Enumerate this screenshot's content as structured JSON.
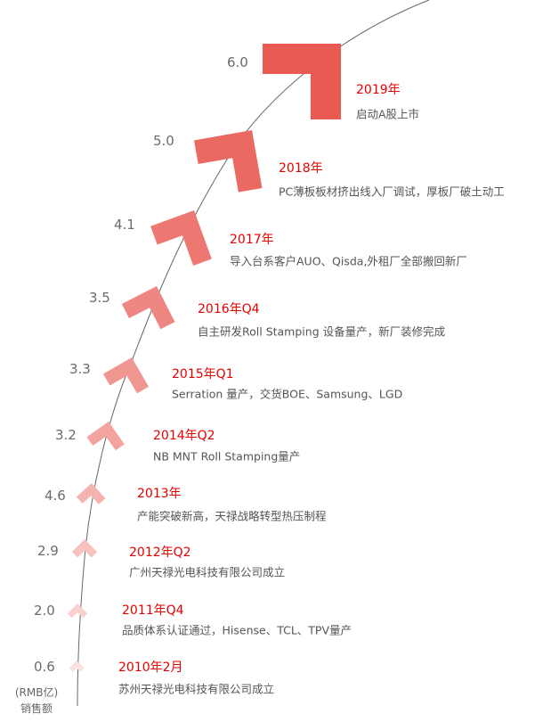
{
  "unit_label": "(RMB亿)",
  "axis_label": "销售额",
  "colors": {
    "title": "#e60000",
    "arrow_top": "#e85a52",
    "arrow_bottom": "#fbe0df",
    "line": "#666666"
  },
  "milestones": [
    {
      "value": "6.0",
      "title": "2019年",
      "desc": "启动A股上市"
    },
    {
      "value": "5.0",
      "title": "2018年",
      "desc": "PC薄板板材挤出线入厂调试，厚板厂破土动工"
    },
    {
      "value": "4.1",
      "title": "2017年",
      "desc": "导入台系客户AUO、Qisda,外租厂全部搬回新厂"
    },
    {
      "value": "3.5",
      "title": "2016年Q4",
      "desc": "自主研发Roll Stamping 设备量产，新厂装修完成"
    },
    {
      "value": "3.3",
      "title": "2015年Q1",
      "desc": "Serration 量产，交货BOE、Samsung、LGD"
    },
    {
      "value": "3.2",
      "title": "2014年Q2",
      "desc": "NB MNT Roll Stamping量产"
    },
    {
      "value": "4.6",
      "title": "2013年",
      "desc": "产能突破新高，天禄战略转型热压制程"
    },
    {
      "value": "2.9",
      "title": "2012年Q2",
      "desc": "广州天禄光电科技有限公司成立"
    },
    {
      "value": "2.0",
      "title": "2011年Q4",
      "desc": "品质体系认证通过，Hisense、TCL、TPV量产"
    },
    {
      "value": "0.6",
      "title": "2010年2月",
      "desc": "苏州天禄光电科技有限公司成立"
    }
  ]
}
